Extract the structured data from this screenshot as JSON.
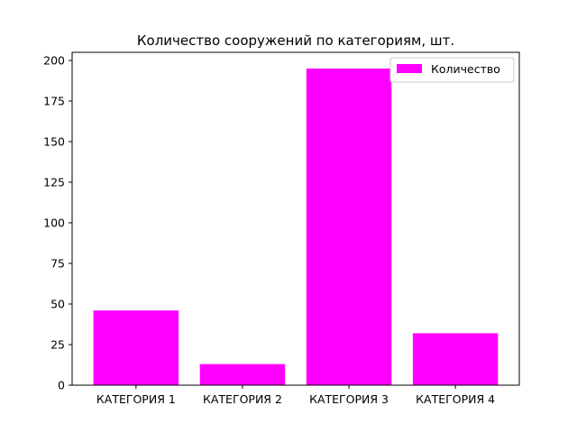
{
  "chart_data": {
    "type": "bar",
    "title": "Количество сооружений по категориям, шт.",
    "xlabel": "",
    "ylabel": "",
    "categories": [
      "КАТЕГОРИЯ 1",
      "КАТЕГОРИЯ 2",
      "КАТЕГОРИЯ 3",
      "КАТЕГОРИЯ 4"
    ],
    "series": [
      {
        "name": "Количество",
        "values": [
          46,
          13,
          195,
          32
        ],
        "color": "#ff00ff"
      }
    ],
    "ylim": [
      0,
      205
    ],
    "yticks": [
      0,
      25,
      50,
      75,
      100,
      125,
      150,
      175,
      200
    ],
    "grid": false,
    "legend_position": "top-right"
  }
}
